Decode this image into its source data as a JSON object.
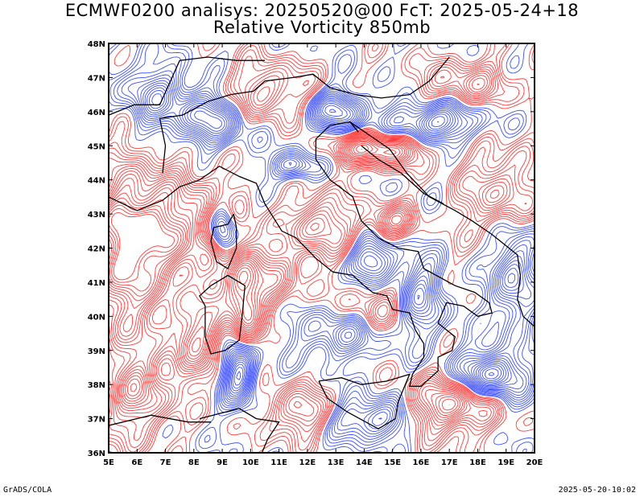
{
  "title": {
    "line1": "ECMWF0200 analisys: 20250520@00 FcT: 2025-05-24+18",
    "line2": "Relative Vorticity 850mb"
  },
  "map": {
    "lon_range": [
      5,
      20
    ],
    "lat_range": [
      36,
      48
    ],
    "lon_ticks": [
      "5E",
      "6E",
      "7E",
      "8E",
      "9E",
      "10E",
      "11E",
      "12E",
      "13E",
      "14E",
      "15E",
      "16E",
      "17E",
      "18E",
      "19E",
      "20E"
    ],
    "lat_ticks": [
      "36N",
      "37N",
      "38N",
      "39N",
      "40N",
      "41N",
      "42N",
      "43N",
      "44N",
      "45N",
      "46N",
      "47N",
      "48N"
    ],
    "colors": {
      "positive": "#ff3c3c",
      "negative": "#3c50ff",
      "coast": "#000000"
    }
  },
  "footer": {
    "left": "GrADS/COLA",
    "right": "2025-05-20-10:02"
  }
}
